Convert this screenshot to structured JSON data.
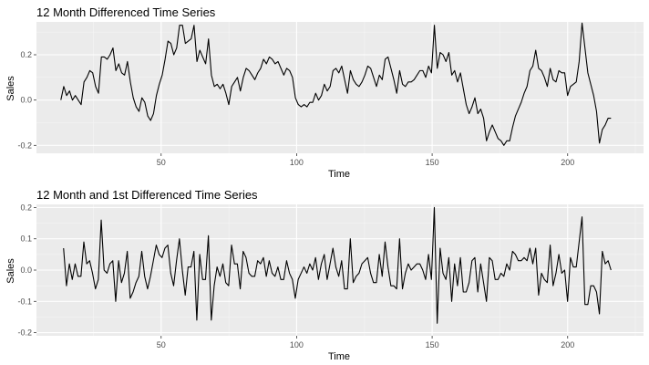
{
  "colors": {
    "panel_bg": "#ebebeb",
    "grid_major": "#ffffff",
    "grid_minor": "#f5f5f5",
    "line": "#000000",
    "tick_text": "#4d4d4d"
  },
  "chart_data": [
    {
      "type": "line",
      "title": "12 Month Differenced Time Series",
      "xlabel": "Time",
      "ylabel": "Sales",
      "xlim": [
        4,
        228
      ],
      "ylim": [
        -0.235,
        0.345
      ],
      "x_ticks": [
        50,
        100,
        150,
        200
      ],
      "x_tick_labels": [
        "50",
        "100",
        "150",
        "200"
      ],
      "y_ticks": [
        -0.2,
        0.0,
        0.2
      ],
      "y_tick_labels": [
        "-0.2",
        "0.0",
        "0.2"
      ],
      "grid": true,
      "x_start": 13,
      "y": [
        0.0,
        0.06,
        0.02,
        0.04,
        0.0,
        0.02,
        0.0,
        -0.02,
        0.08,
        0.1,
        0.13,
        0.12,
        0.06,
        0.03,
        0.19,
        0.19,
        0.18,
        0.2,
        0.23,
        0.13,
        0.16,
        0.12,
        0.11,
        0.17,
        0.08,
        0.01,
        -0.03,
        -0.05,
        0.01,
        -0.01,
        -0.07,
        -0.09,
        -0.06,
        0.02,
        0.07,
        0.11,
        0.18,
        0.26,
        0.25,
        0.2,
        0.23,
        0.33,
        0.33,
        0.25,
        0.26,
        0.27,
        0.33,
        0.17,
        0.22,
        0.19,
        0.16,
        0.27,
        0.11,
        0.06,
        0.07,
        0.05,
        0.07,
        0.03,
        -0.02,
        0.06,
        0.08,
        0.1,
        0.04,
        0.1,
        0.14,
        0.13,
        0.11,
        0.09,
        0.12,
        0.14,
        0.18,
        0.16,
        0.19,
        0.18,
        0.16,
        0.17,
        0.14,
        0.11,
        0.14,
        0.13,
        0.1,
        0.01,
        -0.02,
        -0.03,
        -0.02,
        -0.03,
        -0.01,
        -0.01,
        0.03,
        0.0,
        0.02,
        0.07,
        0.04,
        0.06,
        0.13,
        0.14,
        0.12,
        0.15,
        0.09,
        0.03,
        0.13,
        0.09,
        0.07,
        0.06,
        0.08,
        0.11,
        0.15,
        0.14,
        0.1,
        0.06,
        0.11,
        0.09,
        0.18,
        0.19,
        0.14,
        0.09,
        0.03,
        0.13,
        0.07,
        0.06,
        0.08,
        0.08,
        0.09,
        0.11,
        0.13,
        0.13,
        0.1,
        0.15,
        0.12,
        0.33,
        0.14,
        0.21,
        0.2,
        0.17,
        0.21,
        0.11,
        0.13,
        0.08,
        0.12,
        0.05,
        -0.02,
        -0.06,
        -0.03,
        0.01,
        -0.06,
        -0.04,
        -0.08,
        -0.18,
        -0.14,
        -0.11,
        -0.14,
        -0.17,
        -0.18,
        -0.2,
        -0.18,
        -0.18,
        -0.12,
        -0.07,
        -0.04,
        -0.01,
        0.03,
        0.06,
        0.13,
        0.15,
        0.22,
        0.14,
        0.13,
        0.1,
        0.06,
        0.14,
        0.09,
        0.08,
        0.13,
        0.12,
        0.12,
        0.02,
        0.06,
        0.07,
        0.08,
        0.17,
        0.34,
        0.23,
        0.12,
        0.07,
        0.02,
        -0.05,
        -0.19,
        -0.13,
        -0.11,
        -0.08,
        -0.08
      ],
      "x_end": 216
    },
    {
      "type": "line",
      "title": "12 Month and 1st Differenced Time Series",
      "xlabel": "Time",
      "ylabel": "Sales",
      "xlim": [
        4,
        228
      ],
      "ylim": [
        -0.21,
        0.21
      ],
      "x_ticks": [
        50,
        100,
        150,
        200
      ],
      "x_tick_labels": [
        "50",
        "100",
        "150",
        "200"
      ],
      "y_ticks": [
        -0.2,
        -0.1,
        0.0,
        0.1,
        0.2
      ],
      "y_tick_labels": [
        "-0.2",
        "-0.1",
        "0.0",
        "0.1",
        "0.2"
      ],
      "grid": true,
      "x_start": 14,
      "y": [
        0.07,
        -0.05,
        0.02,
        -0.03,
        0.02,
        -0.02,
        -0.02,
        0.09,
        0.02,
        0.03,
        -0.01,
        -0.06,
        -0.03,
        0.16,
        0.0,
        -0.01,
        0.02,
        0.03,
        -0.1,
        0.03,
        -0.04,
        -0.01,
        0.06,
        -0.09,
        -0.07,
        -0.04,
        -0.02,
        0.06,
        -0.02,
        -0.06,
        -0.02,
        0.03,
        0.08,
        0.05,
        0.04,
        0.07,
        0.08,
        -0.01,
        -0.05,
        0.03,
        0.1,
        0.0,
        -0.08,
        0.01,
        0.01,
        0.06,
        -0.16,
        0.05,
        -0.03,
        -0.03,
        0.11,
        -0.16,
        -0.05,
        0.01,
        -0.02,
        0.02,
        -0.04,
        -0.05,
        0.08,
        0.02,
        0.02,
        -0.06,
        0.06,
        0.04,
        -0.01,
        -0.02,
        -0.02,
        0.03,
        0.02,
        0.04,
        -0.02,
        0.03,
        -0.01,
        -0.02,
        0.01,
        -0.03,
        -0.03,
        0.03,
        -0.01,
        -0.03,
        -0.09,
        -0.03,
        -0.01,
        0.01,
        -0.01,
        0.02,
        0.0,
        0.04,
        -0.03,
        0.02,
        0.05,
        -0.03,
        0.02,
        0.07,
        0.01,
        -0.02,
        0.03,
        -0.06,
        -0.06,
        0.1,
        -0.04,
        -0.02,
        -0.01,
        0.02,
        0.03,
        0.04,
        -0.01,
        -0.04,
        -0.04,
        0.05,
        -0.02,
        0.09,
        0.01,
        -0.05,
        -0.05,
        -0.06,
        0.1,
        -0.06,
        -0.01,
        0.02,
        0.0,
        0.01,
        0.02,
        0.02,
        0.0,
        -0.03,
        0.05,
        -0.03,
        0.2,
        -0.17,
        0.07,
        -0.01,
        -0.03,
        0.04,
        -0.1,
        0.02,
        -0.05,
        0.04,
        -0.07,
        -0.07,
        -0.04,
        0.03,
        0.04,
        -0.07,
        0.02,
        -0.04,
        -0.1,
        0.04,
        0.03,
        -0.03,
        -0.03,
        -0.01,
        -0.02,
        0.02,
        0.0,
        0.06,
        0.05,
        0.03,
        0.03,
        0.04,
        0.03,
        0.07,
        0.02,
        0.07,
        -0.08,
        -0.01,
        -0.03,
        -0.04,
        0.08,
        -0.05,
        -0.01,
        0.05,
        -0.01,
        0.0,
        -0.1,
        0.04,
        0.01,
        0.01,
        0.09,
        0.17,
        -0.11,
        -0.11,
        -0.05,
        -0.05,
        -0.07,
        -0.14,
        0.06,
        0.02,
        0.03,
        0.0
      ],
      "x_end": 216
    }
  ]
}
